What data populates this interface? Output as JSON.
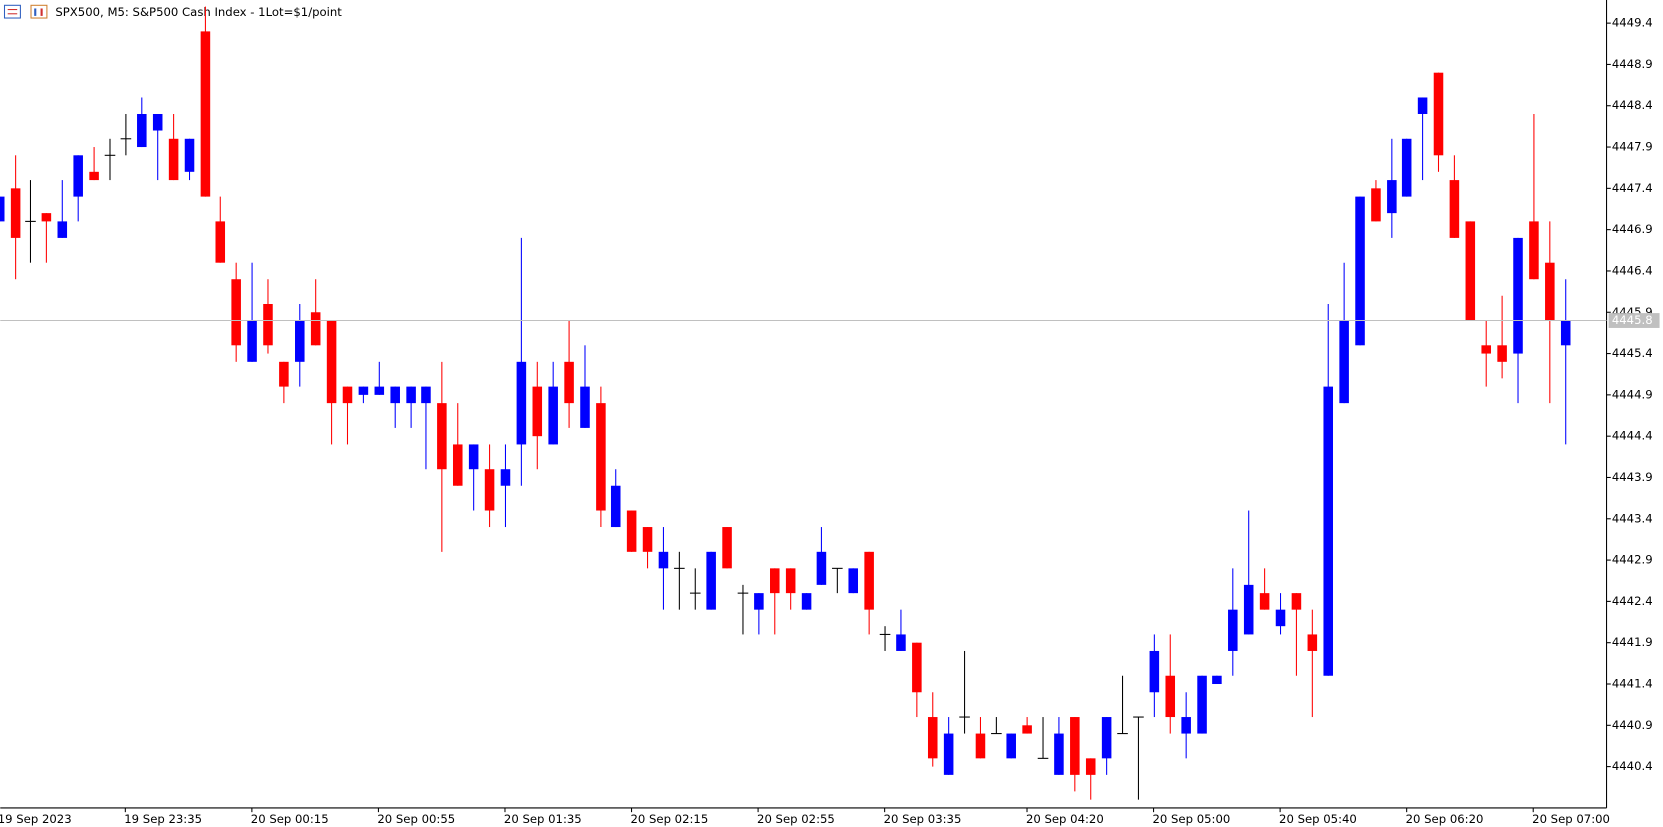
{
  "chart_data": {
    "type": "candlestick",
    "title": "SPX500, M5:  S&P500 Cash Index - 1Lot=$1/point",
    "categories": [
      "19 Sep 2023",
      null,
      null,
      null,
      null,
      null,
      null,
      null,
      "19 Sep 23:35",
      null,
      null,
      null,
      null,
      null,
      null,
      null,
      "20 Sep 00:15",
      null,
      null,
      null,
      null,
      null,
      null,
      null,
      "20 Sep 00:55",
      null,
      null,
      null,
      null,
      null,
      null,
      null,
      "20 Sep 01:35",
      null,
      null,
      null,
      null,
      null,
      null,
      null,
      "20 Sep 02:15",
      null,
      null,
      null,
      null,
      null,
      null,
      null,
      "20 Sep 02:55",
      null,
      null,
      null,
      null,
      null,
      null,
      null,
      "20 Sep 03:35",
      null,
      null,
      null,
      null,
      null,
      null,
      null,
      null,
      "20 Sep 04:20",
      null,
      null,
      null,
      null,
      null,
      null,
      null,
      "20 Sep 05:00",
      null,
      null,
      null,
      null,
      null,
      null,
      null,
      "20 Sep 05:40",
      null,
      null,
      null,
      null,
      null,
      null,
      null,
      "20 Sep 06:20",
      null,
      null,
      null,
      null,
      null,
      null,
      null,
      "20 Sep 07:00",
      null,
      null
    ],
    "open": [
      4447.0,
      4447.4,
      4447.0,
      4447.1,
      4446.8,
      4447.3,
      4447.6,
      4447.8,
      4448.0,
      4447.9,
      4448.1,
      4448.0,
      4447.6,
      4449.3,
      4447.0,
      4446.3,
      4445.3,
      4446.0,
      4445.3,
      4445.3,
      4445.9,
      4445.8,
      4445.0,
      4444.9,
      4444.9,
      4444.8,
      4444.8,
      4444.8,
      4444.8,
      4444.3,
      4444.0,
      4444.0,
      4443.8,
      4444.3,
      4445.0,
      4444.3,
      4445.3,
      4444.5,
      4444.8,
      4443.3,
      4443.5,
      4443.3,
      4442.8,
      4442.8,
      4442.5,
      4442.3,
      4443.3,
      4442.5,
      4442.3,
      4442.8,
      4442.8,
      4442.3,
      4442.6,
      4442.8,
      4442.5,
      4443.0,
      4442.0,
      4441.8,
      4441.9,
      4441.0,
      4440.3,
      4441.0,
      4440.8,
      4440.8,
      4440.5,
      4440.9,
      4440.5,
      4440.3,
      4441.0,
      4440.5,
      4440.5,
      4440.8,
      4441.0,
      4441.3,
      4441.5,
      4440.8,
      4440.8,
      4441.4,
      4441.8,
      4442.0,
      4442.5,
      4442.1,
      4442.5,
      4442.0,
      4441.5,
      4444.8,
      4445.5,
      4447.4,
      4447.1,
      4447.3,
      4448.3,
      4448.8,
      4447.5,
      4447.0,
      4445.5,
      4445.5,
      4445.4,
      4447.0,
      4446.5,
      4445.5
    ],
    "high": [
      4447.3,
      4447.8,
      4447.5,
      4447.1,
      4447.5,
      4447.8,
      4447.9,
      4448.0,
      4448.3,
      4448.5,
      4448.3,
      4448.3,
      4448.0,
      4449.6,
      4447.3,
      4446.5,
      4446.5,
      4446.3,
      4445.3,
      4446.0,
      4446.3,
      4445.8,
      4445.0,
      4445.0,
      4445.3,
      4445.0,
      4445.0,
      4445.0,
      4445.3,
      4444.8,
      4444.3,
      4444.3,
      4444.3,
      4446.8,
      4445.3,
      4445.3,
      4445.8,
      4445.5,
      4445.0,
      4444.0,
      4443.5,
      4443.3,
      4443.3,
      4443.0,
      4442.8,
      4443.0,
      4443.3,
      4442.6,
      4442.5,
      4442.8,
      4442.8,
      4442.5,
      4443.3,
      4442.8,
      4442.8,
      4443.0,
      4442.1,
      4442.3,
      4441.9,
      4441.3,
      4441.0,
      4441.8,
      4441.0,
      4441.0,
      4440.8,
      4441.0,
      4441.0,
      4441.0,
      4441.0,
      4440.5,
      4441.0,
      4441.5,
      4441.0,
      4442.0,
      4442.0,
      4441.3,
      4441.5,
      4441.5,
      4442.8,
      4443.5,
      4442.8,
      4442.5,
      4442.5,
      4442.3,
      4446.0,
      4446.5,
      4447.3,
      4447.5,
      4448.0,
      4448.0,
      4448.5,
      4448.8,
      4447.8,
      4447.0,
      4445.8,
      4446.1,
      4446.8,
      4448.3,
      4447.0,
      4446.3
    ],
    "low": [
      4447.0,
      4446.3,
      4446.5,
      4446.5,
      4446.8,
      4447.0,
      4447.5,
      4447.5,
      4447.8,
      4447.9,
      4447.5,
      4447.5,
      4447.5,
      4447.3,
      4446.5,
      4445.3,
      4445.3,
      4445.4,
      4444.8,
      4445.0,
      4445.5,
      4444.3,
      4444.3,
      4444.8,
      4444.9,
      4444.5,
      4444.5,
      4444.0,
      4443.0,
      4443.8,
      4443.5,
      4443.3,
      4443.3,
      4443.8,
      4444.0,
      4444.3,
      4444.5,
      4444.5,
      4443.3,
      4443.3,
      4443.0,
      4442.8,
      4442.3,
      4442.3,
      4442.3,
      4442.3,
      4442.8,
      4442.0,
      4442.0,
      4442.0,
      4442.3,
      4442.3,
      4442.6,
      4442.5,
      4442.5,
      4442.0,
      4441.8,
      4441.8,
      4441.0,
      4440.4,
      4440.3,
      4440.8,
      4440.5,
      4440.8,
      4440.5,
      4440.8,
      4440.5,
      4440.3,
      4440.1,
      4440.0,
      4440.3,
      4440.8,
      4440.0,
      4441.0,
      4440.8,
      4440.5,
      4440.8,
      4441.4,
      4441.5,
      4442.0,
      4442.3,
      4442.0,
      4441.5,
      4441.0,
      4441.5,
      4444.8,
      4445.5,
      4447.0,
      4446.8,
      4447.3,
      4447.5,
      4447.6,
      4446.8,
      4445.8,
      4445.0,
      4445.1,
      4444.8,
      4446.3,
      4444.8,
      4444.3
    ],
    "close": [
      4447.3,
      4446.8,
      4447.0,
      4447.0,
      4447.0,
      4447.8,
      4447.5,
      4447.8,
      4448.0,
      4448.3,
      4448.3,
      4447.5,
      4448.0,
      4447.3,
      4446.5,
      4445.5,
      4445.8,
      4445.5,
      4445.0,
      4445.8,
      4445.5,
      4444.8,
      4444.8,
      4445.0,
      4445.0,
      4445.0,
      4445.0,
      4445.0,
      4444.0,
      4443.8,
      4444.3,
      4443.5,
      4444.0,
      4445.3,
      4444.4,
      4445.0,
      4444.8,
      4445.0,
      4443.5,
      4443.8,
      4443.0,
      4443.0,
      4443.0,
      4442.8,
      4442.5,
      4443.0,
      4442.8,
      4442.5,
      4442.5,
      4442.5,
      4442.5,
      4442.5,
      4443.0,
      4442.8,
      4442.8,
      4442.3,
      4442.0,
      4442.0,
      4441.3,
      4440.5,
      4440.8,
      4441.0,
      4440.5,
      4440.8,
      4440.8,
      4440.8,
      4440.5,
      4440.8,
      4440.3,
      4440.3,
      4441.0,
      4440.8,
      4441.0,
      4441.8,
      4441.0,
      4441.0,
      4441.5,
      4441.5,
      4442.3,
      4442.6,
      4442.3,
      4442.3,
      4442.3,
      4441.8,
      4445.0,
      4445.8,
      4447.3,
      4447.0,
      4447.5,
      4448.0,
      4448.5,
      4447.8,
      4446.8,
      4445.8,
      4445.4,
      4445.3,
      4446.8,
      4446.3,
      4445.8,
      4445.8
    ],
    "up_color": "#0000ff",
    "down_color": "#ff0000",
    "doji_color": "#000000",
    "last_price": 4445.8,
    "ylim": [
      4439.9,
      4449.68
    ],
    "yticks": [
      4449.4,
      4448.9,
      4448.4,
      4447.9,
      4447.4,
      4446.9,
      4446.4,
      4445.9,
      4445.4,
      4444.9,
      4444.4,
      4443.9,
      4443.4,
      4442.9,
      4442.4,
      4441.9,
      4441.4,
      4440.9,
      4440.4
    ],
    "grid": false
  }
}
